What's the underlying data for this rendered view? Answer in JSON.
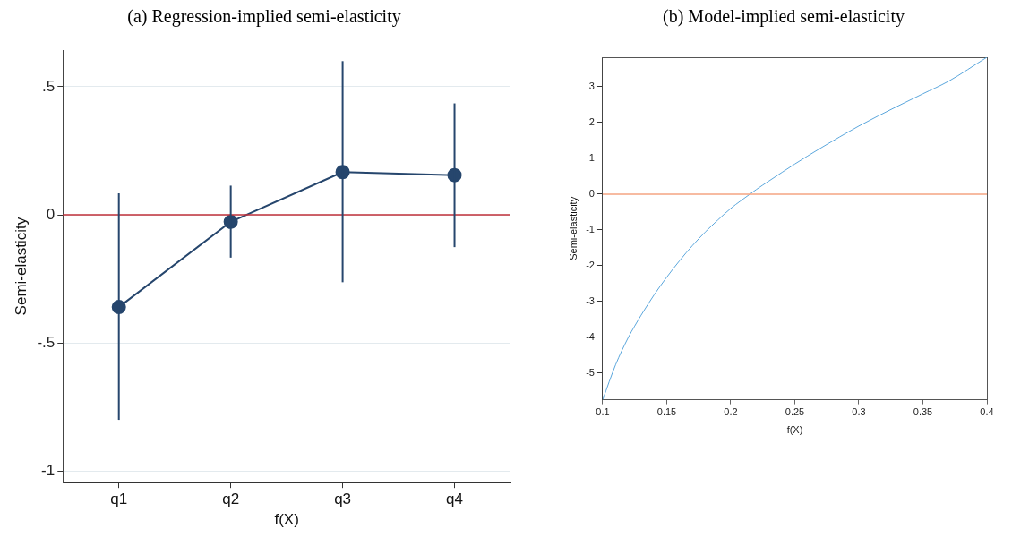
{
  "chart_data": [
    {
      "type": "line",
      "title": "(a) Regression-implied semi-elasticity",
      "xlabel": "f(X)",
      "ylabel": "Semi-elasticity",
      "categories": [
        "q1",
        "q2",
        "q3",
        "q4"
      ],
      "series": [
        {
          "color": "#26466d",
          "values": [
            -0.36,
            -0.027,
            0.167,
            0.155
          ],
          "errors": [
            [
              -0.8,
              0.084
            ],
            [
              -0.167,
              0.114
            ],
            [
              -0.263,
              0.6
            ],
            [
              -0.126,
              0.435
            ]
          ]
        }
      ],
      "ylim": [
        -1.045,
        0.643
      ],
      "yticks": [
        {
          "value": -1,
          "label": "-1"
        },
        {
          "value": -0.5,
          "label": "-.5"
        },
        {
          "value": 0,
          "label": "0"
        },
        {
          "value": 0.5,
          "label": ".5"
        }
      ],
      "ref_lines": [
        {
          "axis": "y",
          "value": 0,
          "color": "#c0303a"
        }
      ],
      "grid": "y",
      "legend": false,
      "marker": "circle"
    },
    {
      "type": "line",
      "title": "(b) Model-implied semi-elasticity",
      "xlabel": "f(X)",
      "ylabel": "Semi-elasticity",
      "x": [
        0.1,
        0.11,
        0.12,
        0.125,
        0.13,
        0.14,
        0.15,
        0.16,
        0.17,
        0.18,
        0.19,
        0.2,
        0.215,
        0.22,
        0.23,
        0.25,
        0.27,
        0.3,
        0.33,
        0.35,
        0.37,
        0.4
      ],
      "series": [
        {
          "color": "#5aa6dc",
          "values": [
            -5.74,
            -4.77,
            -4.0,
            -3.68,
            -3.38,
            -2.82,
            -2.32,
            -1.86,
            -1.44,
            -1.06,
            -0.72,
            -0.4,
            0,
            0.13,
            0.37,
            0.84,
            1.28,
            1.9,
            2.45,
            2.8,
            3.15,
            3.82
          ]
        }
      ],
      "xlim": [
        0.1,
        0.4
      ],
      "xticks": [
        0.1,
        0.15,
        0.2,
        0.25,
        0.3,
        0.35,
        0.4
      ],
      "ylim": [
        -5.74,
        3.82
      ],
      "yticks": [
        -5,
        -4,
        -3,
        -2,
        -1,
        0,
        1,
        2,
        3
      ],
      "ref_lines": [
        {
          "axis": "y",
          "value": 0,
          "color": "#f4a582"
        }
      ],
      "grid": false,
      "legend": false,
      "marker": "none"
    }
  ]
}
